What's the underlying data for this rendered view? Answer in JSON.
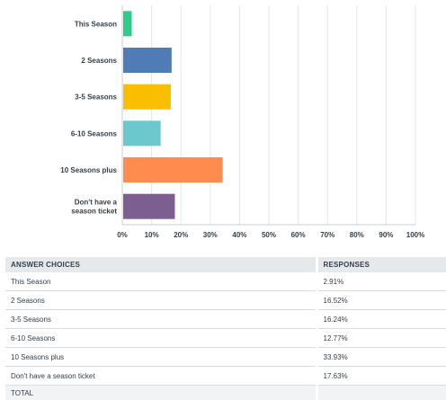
{
  "chart_data": {
    "type": "bar",
    "orientation": "horizontal",
    "categories": [
      "This Season",
      "2 Seasons",
      "3-5 Seasons",
      "6-10 Seasons",
      "10 Seasons plus",
      "Don't have a season ticket"
    ],
    "values": [
      2.91,
      16.52,
      16.24,
      12.77,
      33.93,
      17.63
    ],
    "colors": [
      "#2dcc8a",
      "#507cb6",
      "#f9be00",
      "#6bc8cd",
      "#ff8b4f",
      "#7d5e90"
    ],
    "xticks": [
      "0%",
      "10%",
      "20%",
      "30%",
      "40%",
      "50%",
      "60%",
      "70%",
      "80%",
      "90%",
      "100%"
    ],
    "xlim": [
      0,
      100
    ],
    "grid": true
  },
  "table": {
    "headers": {
      "choice": "ANSWER CHOICES",
      "responses": "RESPONSES"
    },
    "rows": [
      {
        "choice": "This Season",
        "response": "2.91%"
      },
      {
        "choice": "2 Seasons",
        "response": "16.52%"
      },
      {
        "choice": "3-5 Seasons",
        "response": "16.24%"
      },
      {
        "choice": "6-10 Seasons",
        "response": "12.77%"
      },
      {
        "choice": "10 Seasons plus",
        "response": "33.93%"
      },
      {
        "choice": "Don't have a season ticket",
        "response": "17.63%"
      }
    ],
    "total_label": "TOTAL"
  }
}
